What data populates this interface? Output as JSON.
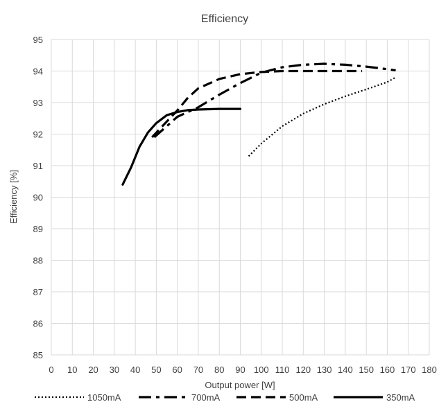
{
  "chart_data": {
    "type": "line",
    "title": "Efficiency",
    "xlabel": "Output power [W]",
    "ylabel": "Efficiency [%]",
    "xlim": [
      0,
      180
    ],
    "ylim": [
      85,
      95
    ],
    "x_ticks": [
      0,
      10,
      20,
      30,
      40,
      50,
      60,
      70,
      80,
      90,
      100,
      110,
      120,
      130,
      140,
      150,
      160,
      170,
      180
    ],
    "y_ticks": [
      85,
      86,
      87,
      88,
      89,
      90,
      91,
      92,
      93,
      94,
      95
    ],
    "grid": true,
    "legend_position": "bottom",
    "series": [
      {
        "name": "1050mA",
        "dash": "dotted",
        "x": [
          94,
          100,
          110,
          120,
          130,
          140,
          150,
          160,
          164
        ],
        "y": [
          91.3,
          91.7,
          92.25,
          92.65,
          92.95,
          93.2,
          93.42,
          93.65,
          93.8
        ]
      },
      {
        "name": "700mA",
        "dash": "dashdot",
        "x": [
          49,
          55,
          60,
          70,
          80,
          90,
          100,
          110,
          120,
          130,
          140,
          150,
          160,
          164
        ],
        "y": [
          91.9,
          92.25,
          92.55,
          92.85,
          93.25,
          93.62,
          93.95,
          94.12,
          94.2,
          94.23,
          94.2,
          94.14,
          94.06,
          94.02
        ]
      },
      {
        "name": "500mA",
        "dash": "dashed",
        "x": [
          48,
          55,
          60,
          65,
          70,
          80,
          90,
          100,
          110,
          120,
          130,
          140,
          148
        ],
        "y": [
          91.9,
          92.4,
          92.75,
          93.15,
          93.45,
          93.75,
          93.9,
          93.97,
          94.0,
          94.0,
          94.0,
          94.0,
          94.0
        ]
      },
      {
        "name": "350mA",
        "dash": "solid",
        "x": [
          34,
          38,
          42,
          46,
          50,
          55,
          60,
          65,
          70,
          80,
          90
        ],
        "y": [
          90.4,
          90.95,
          91.6,
          92.05,
          92.35,
          92.6,
          92.7,
          92.76,
          92.78,
          92.8,
          92.8
        ]
      }
    ]
  }
}
